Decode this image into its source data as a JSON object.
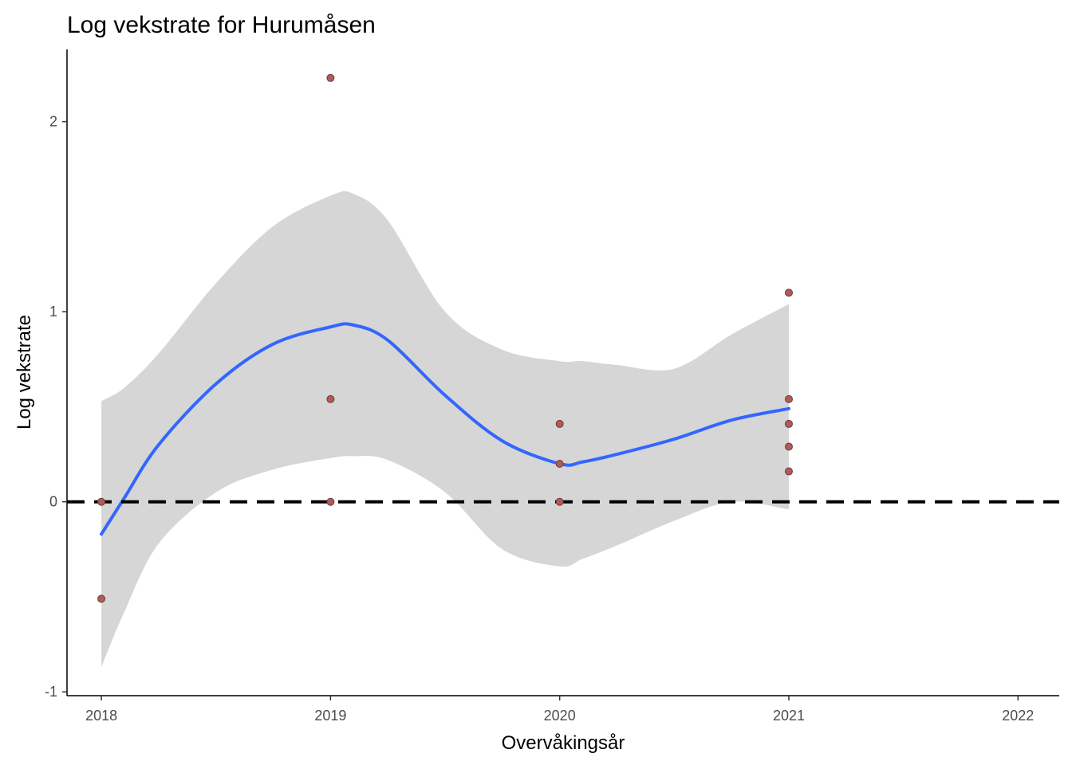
{
  "chart_data": {
    "type": "scatter",
    "title": "Log vekstrate for Hurumåsen",
    "xlabel": "Overvåkingsår",
    "ylabel": "Log vekstrate",
    "xlim": [
      2017.85,
      2022.18
    ],
    "ylim": [
      -1.02,
      2.38
    ],
    "x_ticks": [
      2018,
      2019,
      2020,
      2021,
      2022
    ],
    "y_ticks": [
      -1,
      0,
      1,
      2
    ],
    "grid": false,
    "legend": "none",
    "reference_line": {
      "y": 0,
      "style": "dashed",
      "color": "#000000"
    },
    "points": {
      "color": "#b05a5a",
      "x": [
        2018,
        2018,
        2019,
        2019,
        2019,
        2020,
        2020,
        2020,
        2021,
        2021,
        2021,
        2021,
        2021
      ],
      "y": [
        0.0,
        -0.51,
        2.23,
        0.54,
        0.0,
        0.41,
        0.2,
        0.0,
        1.1,
        0.54,
        0.41,
        0.29,
        0.16
      ]
    },
    "smooth": {
      "color": "#3366ff",
      "band_color": "#d6d6d6",
      "x": [
        2018.0,
        2018.1,
        2018.25,
        2018.5,
        2018.75,
        2019.0,
        2019.1,
        2019.25,
        2019.5,
        2019.75,
        2020.0,
        2020.1,
        2020.25,
        2020.5,
        2020.75,
        2021.0
      ],
      "y": [
        -0.17,
        0.02,
        0.3,
        0.62,
        0.83,
        0.92,
        0.93,
        0.85,
        0.56,
        0.32,
        0.2,
        0.21,
        0.25,
        0.33,
        0.43,
        0.49
      ],
      "lower": [
        -0.87,
        -0.58,
        -0.22,
        0.05,
        0.17,
        0.23,
        0.24,
        0.22,
        0.05,
        -0.25,
        -0.34,
        -0.3,
        -0.23,
        -0.1,
        0.0,
        -0.04
      ],
      "upper": [
        0.53,
        0.6,
        0.78,
        1.15,
        1.45,
        1.61,
        1.62,
        1.48,
        1.0,
        0.8,
        0.74,
        0.74,
        0.72,
        0.7,
        0.88,
        1.04
      ]
    }
  }
}
